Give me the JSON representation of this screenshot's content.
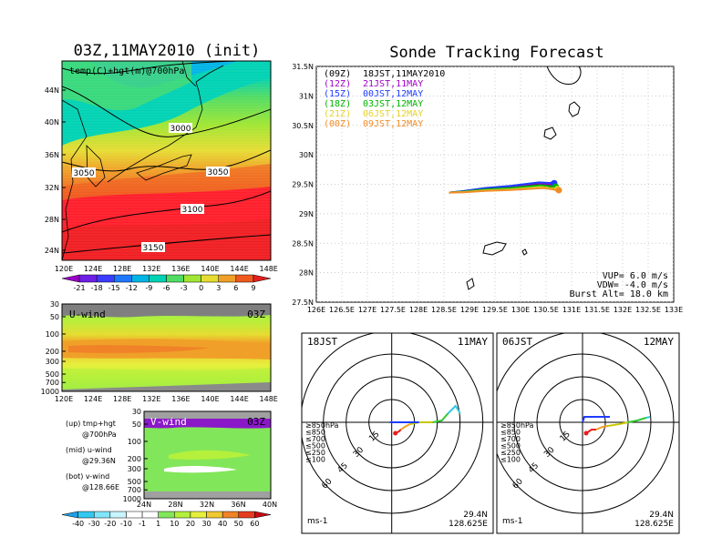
{
  "left_title": "03Z,11MAY2010 (init)",
  "right_title": "Sonde Tracking Forecast",
  "map_panel": {
    "label": "temp(C)+hgt(m)@700hPa",
    "lat_ticks": [
      "44N",
      "40N",
      "36N",
      "32N",
      "28N",
      "24N"
    ],
    "lon_ticks": [
      "120E",
      "124E",
      "128E",
      "132E",
      "136E",
      "140E",
      "144E",
      "148E"
    ],
    "contours": [
      "3000",
      "3050",
      "3050",
      "3100",
      "3150"
    ],
    "colorbar": [
      "-21",
      "-18",
      "-15",
      "-12",
      "-9",
      "-6",
      "-3",
      "0",
      "3",
      "6",
      "9"
    ],
    "colorbar_colors": [
      "#9a00c8",
      "#6e1ee6",
      "#3c3cff",
      "#1e78ff",
      "#00b4e6",
      "#00d2b4",
      "#50dc64",
      "#a0e632",
      "#e6dc32",
      "#f0a028",
      "#f05a1e",
      "#e61e1e"
    ]
  },
  "u_panel": {
    "label": "U-wind",
    "time": "03Z",
    "p_ticks": [
      "30",
      "50",
      "100",
      "200",
      "300",
      "500",
      "700",
      "1000"
    ],
    "lon_ticks": [
      "120E",
      "124E",
      "128E",
      "132E",
      "136E",
      "140E",
      "144E",
      "148E"
    ]
  },
  "v_panel": {
    "label": "V-wind",
    "time": "03Z",
    "p_ticks": [
      "30",
      "50",
      "100",
      "200",
      "300",
      "500",
      "700",
      "1000"
    ],
    "lat_ticks": [
      "24N",
      "28N",
      "32N",
      "36N",
      "40N"
    ],
    "colorbar": [
      "-40",
      "-30",
      "-20",
      "-10",
      "-1",
      "1",
      "10",
      "20",
      "30",
      "40",
      "50",
      "60"
    ],
    "colorbar_colors": [
      "#1ea0e6",
      "#32c8f0",
      "#82e6fa",
      "#c8f5ff",
      "#ffffff",
      "#ffffff",
      "#82e65a",
      "#b4f03c",
      "#e6f03c",
      "#f0c832",
      "#f08228",
      "#e63c1e",
      "#c80a14"
    ]
  },
  "side_legend": [
    {
      "a": "(up) tmp+hgt",
      "b": "@700hPa"
    },
    {
      "a": "(mid) u-wind",
      "b": "@29.36N"
    },
    {
      "a": "(bot) v-wind",
      "b": "@128.66E"
    }
  ],
  "track_panel": {
    "lat_ticks": [
      "31.5N",
      "31N",
      "30.5N",
      "30N",
      "29.5N",
      "29N",
      "28.5N",
      "28N",
      "27.5N"
    ],
    "lon_ticks": [
      "126E",
      "126.5E",
      "127E",
      "127.5E",
      "128E",
      "128.5E",
      "129E",
      "129.5E",
      "130E",
      "130.5E",
      "131E",
      "131.5E",
      "132E",
      "132.5E",
      "133E"
    ],
    "legend": [
      {
        "code": "(09Z)",
        "time": "18JST,11MAY2010",
        "color": "#000000"
      },
      {
        "code": "(12Z)",
        "time": "21JST,11MAY",
        "color": "#a000c8"
      },
      {
        "code": "(15Z)",
        "time": "00JST,12MAY",
        "color": "#1e3cff"
      },
      {
        "code": "(18Z)",
        "time": "03JST,12MAY",
        "color": "#00b400"
      },
      {
        "code": "(21Z)",
        "time": "06JST,12MAY",
        "color": "#e6d228"
      },
      {
        "code": "(00Z)",
        "time": "09JST,12MAY",
        "color": "#f08c28"
      }
    ],
    "params": [
      "VUP= 6.0 m/s",
      "VDW= -4.0 m/s",
      "Burst Alt= 18.0 km"
    ]
  },
  "polar_left": {
    "time": "18JST",
    "date": "11MAY",
    "ring_labels": [
      "15",
      "30",
      "45",
      "60"
    ],
    "levels": [
      "≥850hPa",
      "≤850",
      "≤700",
      "≤500",
      "≤250",
      "≤100"
    ],
    "level_colors": [
      "#e61e1e",
      "#f0a028",
      "#c8c800",
      "#32c832",
      "#32c8e6",
      "#1e3cff"
    ],
    "unit": "ms-1",
    "lat": "29.4N",
    "lon": "128.625E"
  },
  "polar_right": {
    "time": "06JST",
    "date": "12MAY",
    "ring_labels": [
      "15",
      "30",
      "45",
      "60"
    ],
    "levels": [
      "≥850hPa",
      "≤850",
      "≤700",
      "≤500",
      "≤250",
      "≤100"
    ],
    "level_colors": [
      "#e61e1e",
      "#f0a028",
      "#c8c800",
      "#32c832",
      "#32c8e6",
      "#1e3cff"
    ],
    "unit": "ms-1",
    "lat": "29.4N",
    "lon": "128.625E"
  }
}
